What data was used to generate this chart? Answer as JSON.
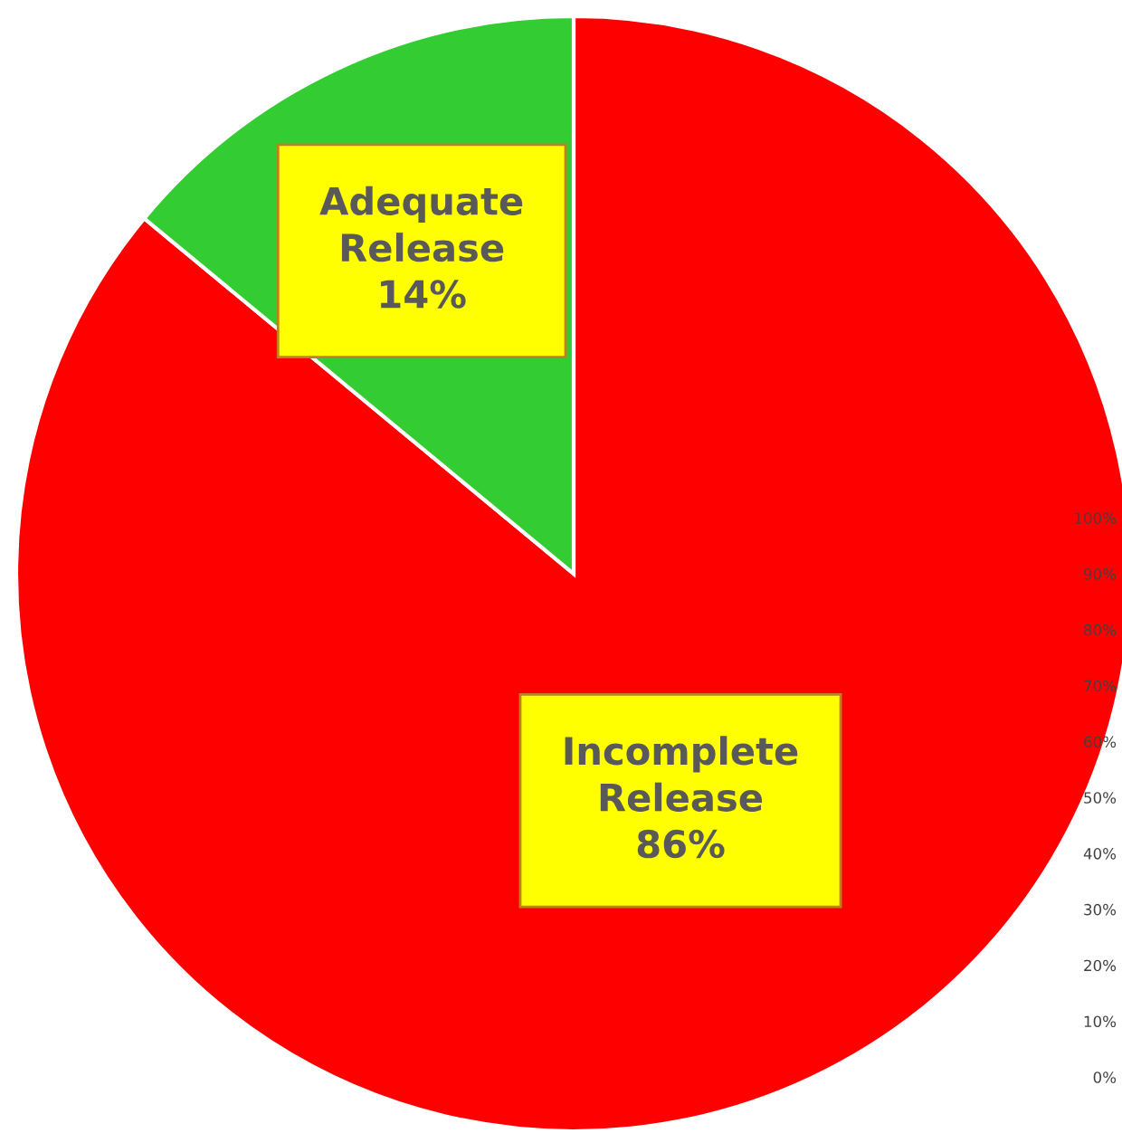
{
  "chart_data": {
    "type": "pie",
    "categories": [
      "Incomplete Release",
      "Adequate Release"
    ],
    "values": [
      86,
      14
    ],
    "colors": [
      "#ff0000",
      "#33cc33"
    ],
    "value_labels": [
      "86%",
      "14%"
    ],
    "annotations": [
      "100%",
      "90%",
      "80%",
      "70%",
      "60%",
      "50%",
      "40%",
      "30%",
      "20%",
      "10%",
      "0%"
    ]
  }
}
